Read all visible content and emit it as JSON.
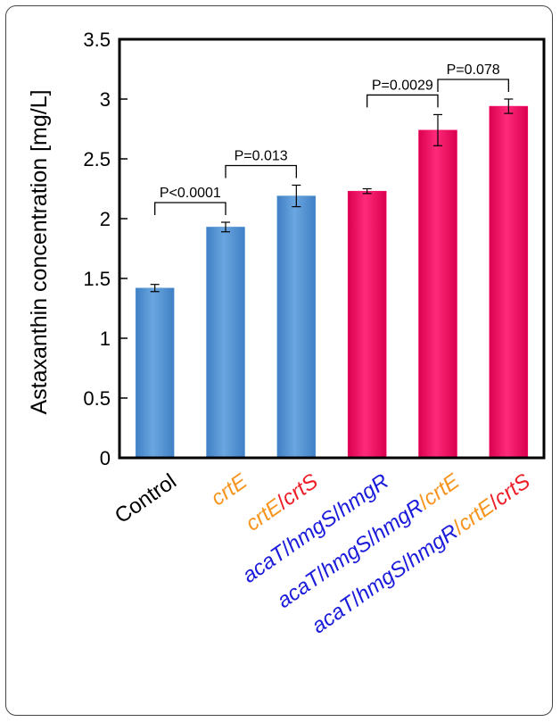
{
  "chart_data": {
    "type": "bar",
    "title": "",
    "xlabel": "",
    "ylabel": "Astaxanthin concentration [mg/L]",
    "ylim": [
      0,
      3.5
    ],
    "yticks": [
      "0",
      "0.5",
      "1",
      "1.5",
      "2",
      "2.5",
      "3",
      "3.5"
    ],
    "categories": [
      {
        "parts": [
          {
            "text": "Control",
            "italic": false,
            "color": "#000000"
          }
        ]
      },
      {
        "parts": [
          {
            "text": "crtE",
            "italic": true,
            "color": "#f7941d"
          }
        ]
      },
      {
        "parts": [
          {
            "text": "crtE",
            "italic": true,
            "color": "#f7941d"
          },
          {
            "text": "/",
            "italic": false,
            "color": "#ee1c25"
          },
          {
            "text": "crtS",
            "italic": true,
            "color": "#ee1c25"
          }
        ]
      },
      {
        "parts": [
          {
            "text": "acaT",
            "italic": true,
            "color": "#1a1adb"
          },
          {
            "text": "/",
            "italic": false,
            "color": "#1a1adb"
          },
          {
            "text": "hmgS",
            "italic": true,
            "color": "#1a1adb"
          },
          {
            "text": "/",
            "italic": false,
            "color": "#1a1adb"
          },
          {
            "text": "hmgR",
            "italic": true,
            "color": "#1a1adb"
          }
        ]
      },
      {
        "parts": [
          {
            "text": "acaT",
            "italic": true,
            "color": "#1a1adb"
          },
          {
            "text": "/",
            "italic": false,
            "color": "#1a1adb"
          },
          {
            "text": "hmgS",
            "italic": true,
            "color": "#1a1adb"
          },
          {
            "text": "/",
            "italic": false,
            "color": "#1a1adb"
          },
          {
            "text": "hmgR",
            "italic": true,
            "color": "#1a1adb"
          },
          {
            "text": "/",
            "italic": false,
            "color": "#f7941d"
          },
          {
            "text": "crtE",
            "italic": true,
            "color": "#f7941d"
          }
        ]
      },
      {
        "parts": [
          {
            "text": "acaT",
            "italic": true,
            "color": "#1a1adb"
          },
          {
            "text": "/",
            "italic": false,
            "color": "#1a1adb"
          },
          {
            "text": "hmgS",
            "italic": true,
            "color": "#1a1adb"
          },
          {
            "text": "/",
            "italic": false,
            "color": "#1a1adb"
          },
          {
            "text": "hmgR",
            "italic": true,
            "color": "#1a1adb"
          },
          {
            "text": "/",
            "italic": false,
            "color": "#f7941d"
          },
          {
            "text": "crtE",
            "italic": true,
            "color": "#f7941d"
          },
          {
            "text": "/",
            "italic": false,
            "color": "#ee1c25"
          },
          {
            "text": "crtS",
            "italic": true,
            "color": "#ee1c25"
          }
        ]
      }
    ],
    "values": [
      1.42,
      1.93,
      2.19,
      2.23,
      2.74,
      2.94
    ],
    "errors": [
      0.03,
      0.04,
      0.09,
      0.02,
      0.13,
      0.06
    ],
    "bar_colors": [
      "#5b9bd5",
      "#5b9bd5",
      "#5b9bd5",
      "#ff0066",
      "#ff0066",
      "#ff0066"
    ],
    "comparisons": [
      {
        "from": 0,
        "to": 1,
        "label": "P<0.0001"
      },
      {
        "from": 1,
        "to": 2,
        "label": "P=0.013"
      },
      {
        "from": 3,
        "to": 4,
        "label": "P=0.0029"
      },
      {
        "from": 4,
        "to": 5,
        "label": "P=0.078"
      }
    ]
  }
}
